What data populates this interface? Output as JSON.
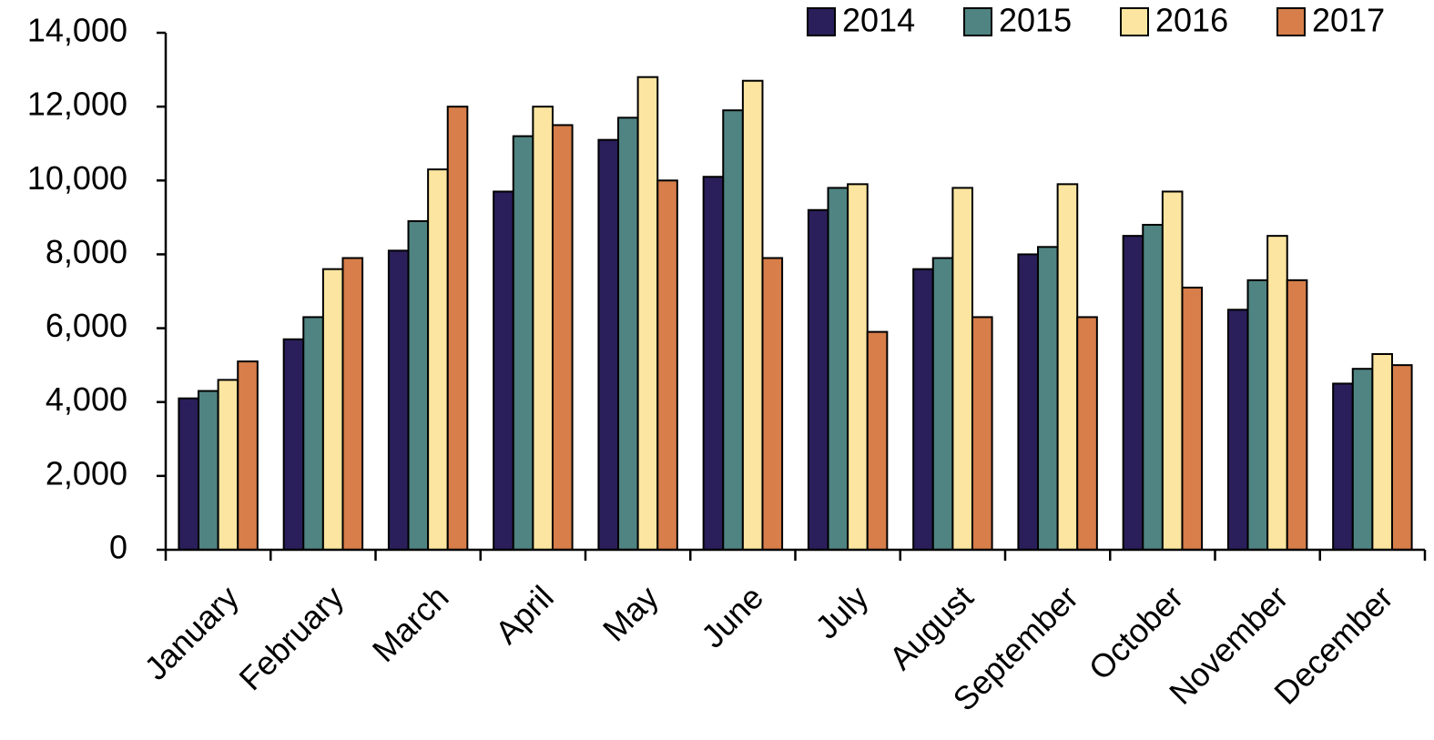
{
  "chart_data": {
    "type": "bar",
    "categories": [
      "January",
      "February",
      "March",
      "April",
      "May",
      "June",
      "July",
      "August",
      "September",
      "October",
      "November",
      "December"
    ],
    "series": [
      {
        "name": "2014",
        "color": "#2a1f5a",
        "values": [
          4100,
          5700,
          8100,
          9700,
          11100,
          10100,
          9200,
          7600,
          8000,
          8500,
          6500,
          4500
        ]
      },
      {
        "name": "2015",
        "color": "#4f8482",
        "values": [
          4300,
          6300,
          8900,
          11200,
          11700,
          11900,
          9800,
          7900,
          8200,
          8800,
          7300,
          4900
        ]
      },
      {
        "name": "2016",
        "color": "#fbe5a0",
        "values": [
          4600,
          7600,
          10300,
          12000,
          12800,
          12700,
          9900,
          9800,
          9900,
          9700,
          8500,
          5300
        ]
      },
      {
        "name": "2017",
        "color": "#d77e4a",
        "values": [
          5100,
          7900,
          12000,
          11500,
          10000,
          7900,
          5900,
          6300,
          6300,
          7100,
          7300,
          5000
        ]
      }
    ],
    "ylim": [
      0,
      14000
    ],
    "yticks": [
      0,
      {
        "value": 2000,
        "label": "2,000"
      },
      {
        "value": 4000,
        "label": "4,000"
      },
      {
        "value": 6000,
        "label": "6,000"
      },
      {
        "value": 8000,
        "label": "8,000"
      },
      {
        "value": 10000,
        "label": "10,000"
      },
      {
        "value": 12000,
        "label": "12,000"
      },
      {
        "value": 14000,
        "label": "14,000"
      }
    ],
    "grid": false,
    "legend": "top-right"
  }
}
